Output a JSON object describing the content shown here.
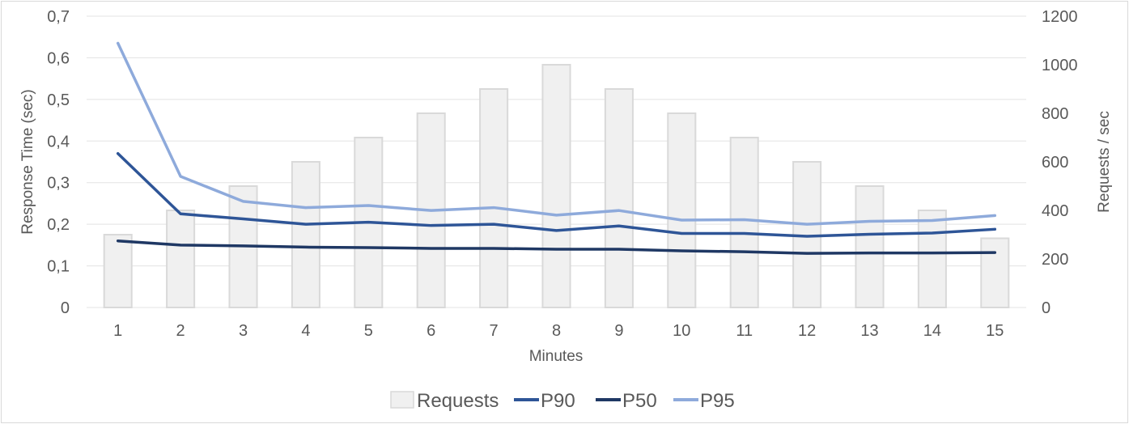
{
  "chart_data": {
    "type": "bar+line",
    "title": "",
    "xlabel": "Minutes",
    "ylabel_left": "Response Time (sec)",
    "ylabel_right": "Requests / sec",
    "categories": [
      "1",
      "2",
      "3",
      "4",
      "5",
      "6",
      "7",
      "8",
      "9",
      "10",
      "11",
      "12",
      "13",
      "14",
      "15"
    ],
    "ylim_left": [
      0,
      0.7
    ],
    "ylim_right": [
      0,
      1200
    ],
    "left_ticks": [
      "0",
      "0,1",
      "0,2",
      "0,3",
      "0,4",
      "0,5",
      "0,6",
      "0,7"
    ],
    "right_ticks": [
      "0",
      "200",
      "400",
      "600",
      "800",
      "1000",
      "1200"
    ],
    "grid": true,
    "legend_position": "bottom",
    "bars": {
      "name": "Requests",
      "axis": "right",
      "color": "#f0f0f0",
      "values": [
        300,
        400,
        500,
        600,
        700,
        800,
        900,
        1000,
        900,
        800,
        700,
        600,
        500,
        400,
        285
      ]
    },
    "series": [
      {
        "name": "P90",
        "axis": "left",
        "color": "#2e5597",
        "values": [
          0.37,
          0.225,
          0.213,
          0.2,
          0.205,
          0.197,
          0.2,
          0.185,
          0.196,
          0.178,
          0.178,
          0.171,
          0.176,
          0.179,
          0.188
        ]
      },
      {
        "name": "P50",
        "axis": "left",
        "color": "#1f3864",
        "values": [
          0.16,
          0.15,
          0.148,
          0.145,
          0.144,
          0.142,
          0.142,
          0.14,
          0.14,
          0.136,
          0.134,
          0.13,
          0.131,
          0.131,
          0.132
        ]
      },
      {
        "name": "P95",
        "axis": "left",
        "color": "#8eaadb",
        "values": [
          0.635,
          0.315,
          0.255,
          0.24,
          0.245,
          0.233,
          0.24,
          0.222,
          0.233,
          0.21,
          0.211,
          0.2,
          0.207,
          0.209,
          0.221
        ]
      }
    ]
  }
}
